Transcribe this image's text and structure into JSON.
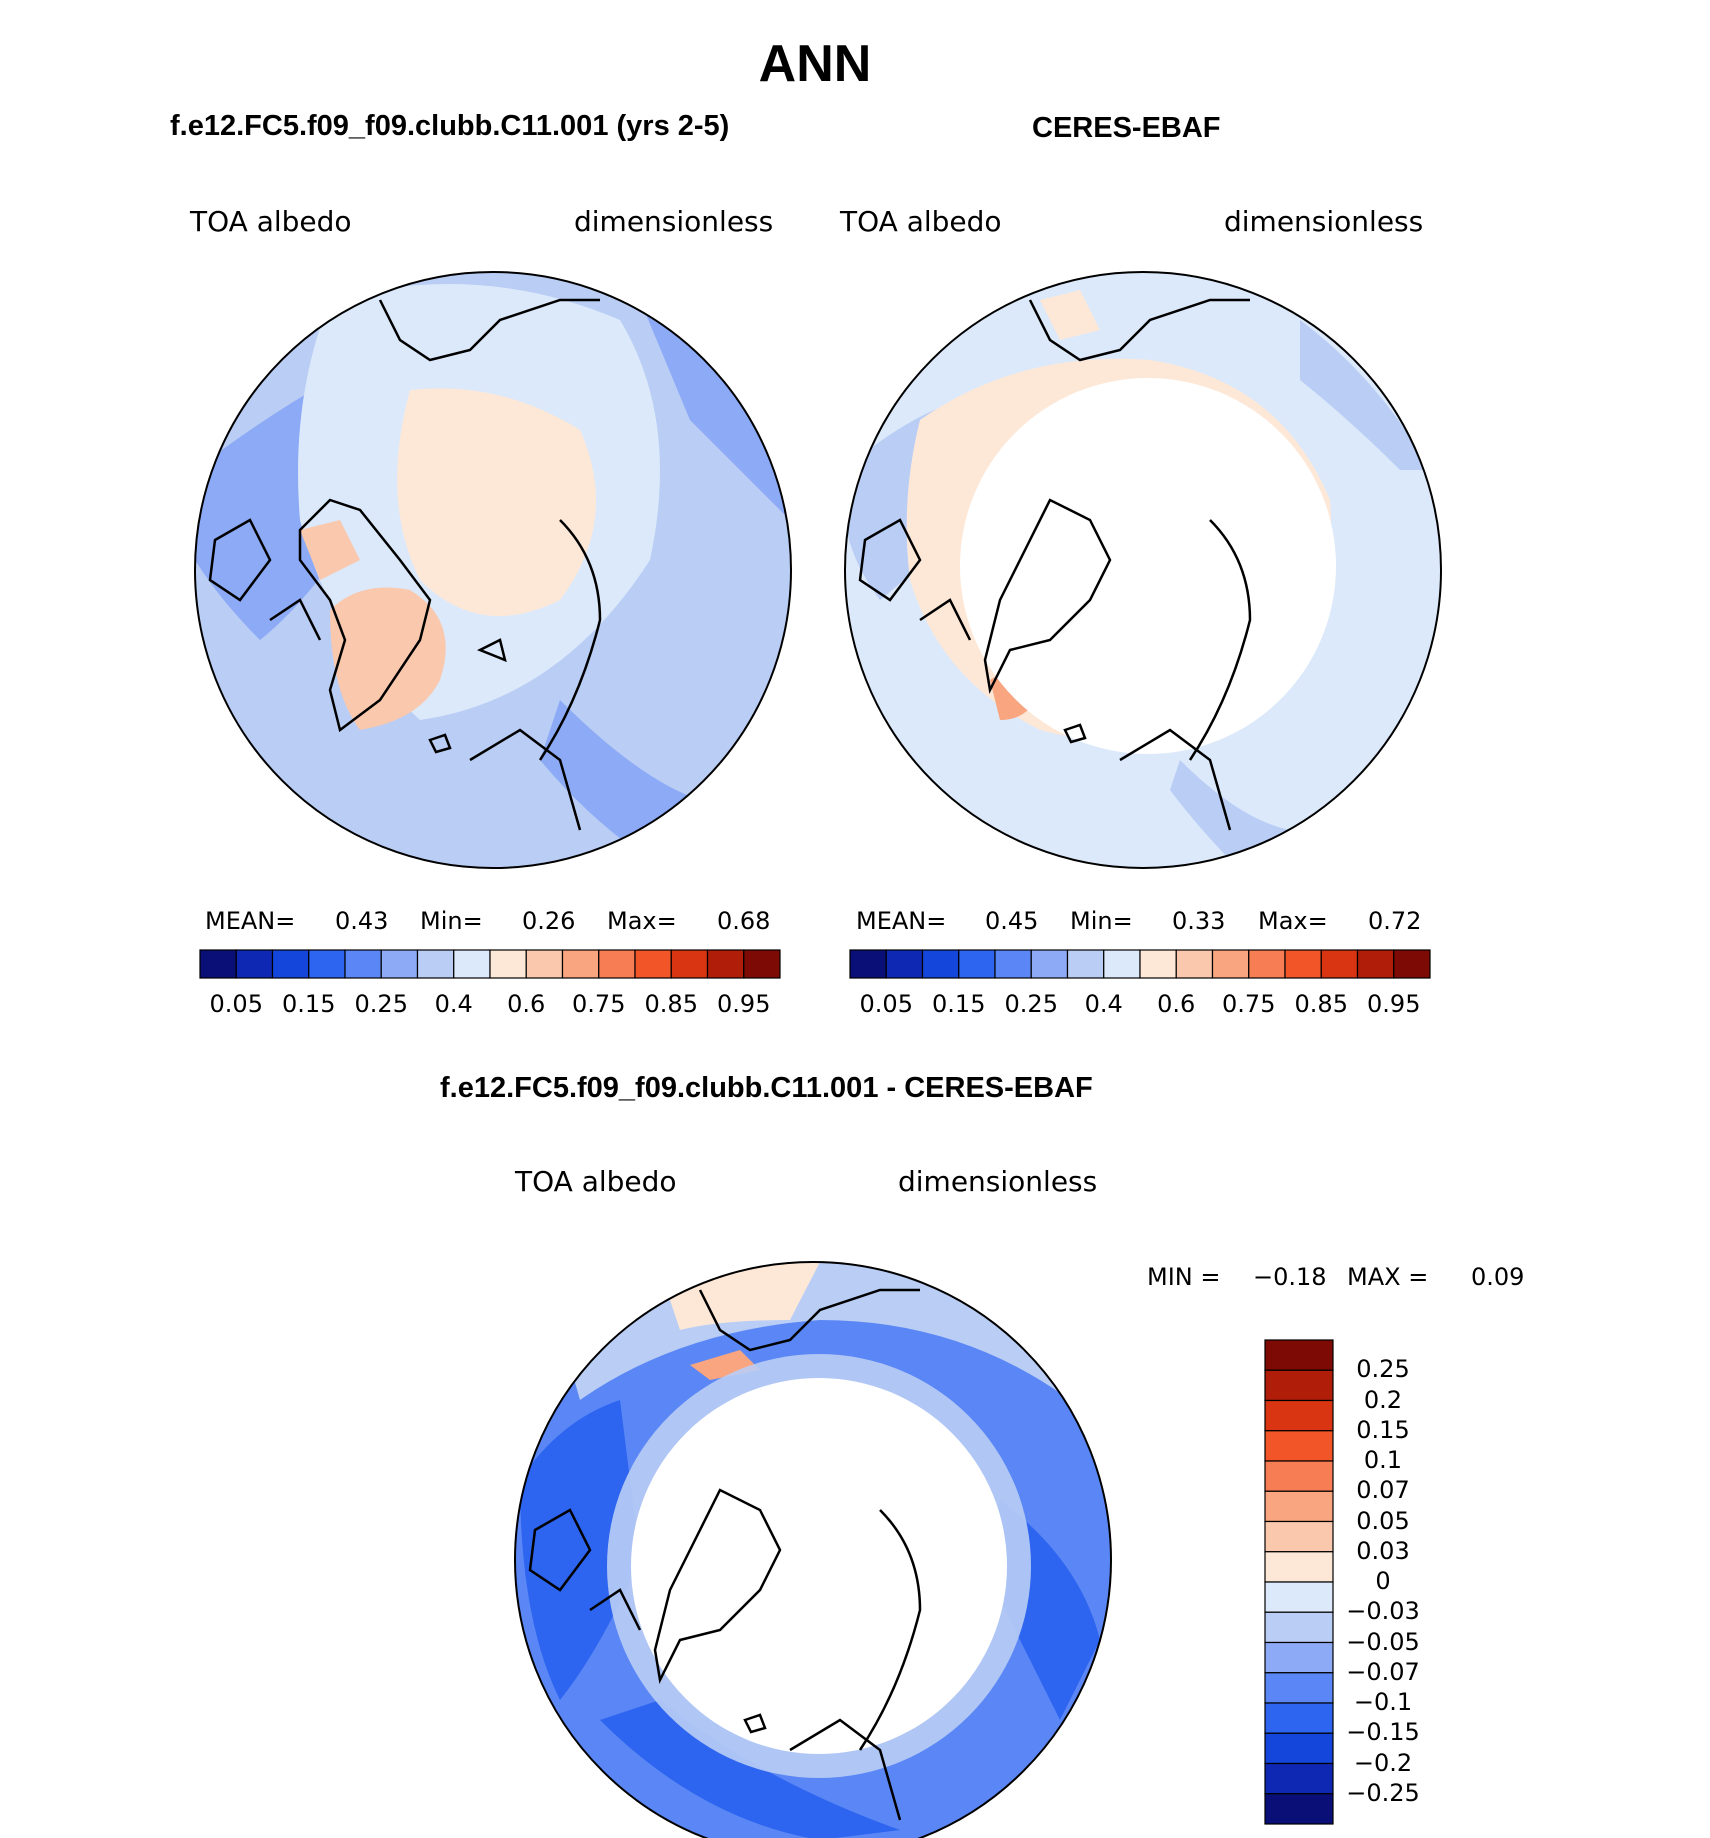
{
  "page_title": "ANN",
  "panels": [
    {
      "title": "f.e12.FC5.f09_f09.clubb.C11.001 (yrs 2-5)",
      "left_label": "TOA albedo",
      "right_label": "dimensionless",
      "stats": {
        "mean_label": "MEAN=",
        "mean_value": "0.43",
        "min_label": "Min=",
        "min_value": "0.26",
        "max_label": "Max=",
        "max_value": "0.68"
      }
    },
    {
      "title": "CERES-EBAF",
      "left_label": "TOA albedo",
      "right_label": "dimensionless",
      "stats": {
        "mean_label": "MEAN=",
        "mean_value": "0.45",
        "min_label": "Min=",
        "min_value": "0.33",
        "max_label": "Max=",
        "max_value": "0.72"
      }
    }
  ],
  "abs_colorbar": {
    "colors": [
      "#0a0f78",
      "#0f28b4",
      "#1446dc",
      "#2d64f0",
      "#5a87f5",
      "#8caaf5",
      "#b9cdf5",
      "#dce9fa",
      "#fde8d8",
      "#fac8ad",
      "#f8a580",
      "#f77d55",
      "#f25528",
      "#d93512",
      "#b01e0a",
      "#7d0a05"
    ],
    "tick_labels": [
      "0.05",
      "0.15",
      "0.25",
      "0.4",
      "0.6",
      "0.75",
      "0.85",
      "0.95"
    ]
  },
  "diff_panel": {
    "title": "f.e12.FC5.f09_f09.clubb.C11.001 - CERES-EBAF",
    "left_label": "TOA albedo",
    "right_label": "dimensionless",
    "min_label": "MIN =",
    "min_value": "−0.18",
    "max_label": "MAX =",
    "max_value": "0.09"
  },
  "diff_colorbar": {
    "colors_top_to_bottom": [
      "#7d0a05",
      "#b01e0a",
      "#d93512",
      "#f25528",
      "#f77d55",
      "#f8a580",
      "#fac8ad",
      "#fde8d8",
      "#dce9fa",
      "#b9cdf5",
      "#8caaf5",
      "#5a87f5",
      "#2d64f0",
      "#1446dc",
      "#0f28b4",
      "#0a0f78"
    ],
    "labels": [
      "0.25",
      "0.2",
      "0.15",
      "0.1",
      "0.07",
      "0.05",
      "0.03",
      "0",
      "−0.03",
      "−0.05",
      "−0.07",
      "−0.1",
      "−0.15",
      "−0.2",
      "−0.25"
    ]
  }
}
